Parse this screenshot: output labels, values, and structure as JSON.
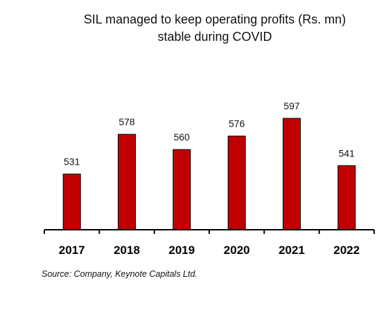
{
  "chart_data": {
    "type": "bar",
    "title": "SIL managed to keep operating profits (Rs. mn) stable during COVID",
    "title_lines": [
      "SIL managed to keep operating profits (Rs. mn)",
      "stable during COVID"
    ],
    "categories": [
      "2017",
      "2018",
      "2019",
      "2020",
      "2021",
      "2022"
    ],
    "values": [
      531,
      578,
      560,
      576,
      597,
      541
    ],
    "data_labels": [
      "531",
      "578",
      "560",
      "576",
      "597",
      "541"
    ],
    "xlabel": "",
    "ylabel": "",
    "ylim": [
      400,
      610
    ],
    "grid": false,
    "legend": "none",
    "colors": {
      "bar_fill": "#C00000",
      "bar_stroke": "#000000",
      "axis": "#000000"
    }
  },
  "source": "Source: Company, Keynote Capitals Ltd."
}
